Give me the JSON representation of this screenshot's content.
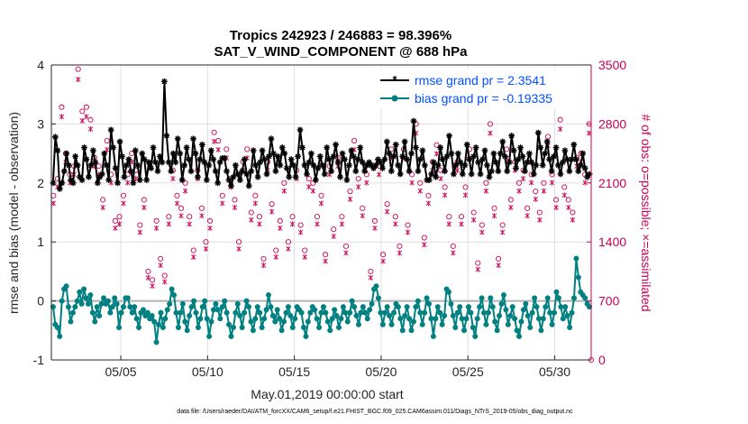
{
  "chart_data": {
    "type": "line",
    "title_line1": "Tropics 242923 / 246883 = 98.396%",
    "title_line2": "SAT_V_WIND_COMPONENT @ 688 hPa",
    "xlabel": "May.01,2019 00:00:00 start",
    "ylabel": "rmse and bias (model - observation)",
    "ylabel_right": "# of obs: o=possible; ×=assimilated",
    "footer": "data file: /Users/raeder/DAI/ATM_forcXX/CAM6_setup/f.e21.FHIST_BGC.f09_025.CAM6assim.011/Diags_NTrS_2019-05/obs_diag_output.nc",
    "xlim": [
      1,
      32.1
    ],
    "ylim": [
      -1,
      4
    ],
    "ylim_right": [
      0,
      3500
    ],
    "x_ticks": [
      5,
      10,
      15,
      20,
      25,
      30
    ],
    "x_tick_labels": [
      "05/05",
      "05/10",
      "05/15",
      "05/20",
      "05/25",
      "05/30"
    ],
    "y_ticks": [
      -1,
      0,
      1,
      2,
      3,
      4
    ],
    "y_tick_labels": [
      "-1",
      "0",
      "1",
      "2",
      "3",
      "4"
    ],
    "y_right_ticks": [
      0,
      700,
      1400,
      2100,
      2800,
      3500
    ],
    "y_right_tick_labels": [
      "0",
      "700",
      "1400",
      "2100",
      "2800",
      "3500"
    ],
    "zero_line": 0,
    "series": [
      {
        "name": "rmse grand pr = 2.3541",
        "color": "#000000",
        "marker": "asterisk",
        "values": [
          2.0,
          2.78,
          2.55,
          1.9,
          2.0,
          2.2,
          2.5,
          2.3,
          2.05,
          2.0,
          2.45,
          2.3,
          2.1,
          2.05,
          2.6,
          2.4,
          2.1,
          2.3,
          2.55,
          2.35,
          2.0,
          2.1,
          2.15,
          2.5,
          2.3,
          2.05,
          2.9,
          2.6,
          2.25,
          2.0,
          2.7,
          2.45,
          2.1,
          2.3,
          2.4,
          2.2,
          2.0,
          2.55,
          2.3,
          2.05,
          2.5,
          2.4,
          2.05,
          2.35,
          2.25,
          2.6,
          2.35,
          2.2,
          2.45,
          2.35,
          3.72,
          2.8,
          2.35,
          2.2,
          2.5,
          2.35,
          2.75,
          2.5,
          2.05,
          2.3,
          2.6,
          2.4,
          2.2,
          2.75,
          2.5,
          2.1,
          2.4,
          2.65,
          2.35,
          2.05,
          2.3,
          2.55,
          2.4,
          2.2,
          2.0,
          2.35,
          2.42,
          2.42,
          2.2,
          2.05,
          1.95,
          2.1,
          2.3,
          2.15,
          2.05,
          2.2,
          2.4,
          2.15,
          1.95,
          2.2,
          2.55,
          2.3,
          2.1,
          2.35,
          2.55,
          2.4,
          2.15,
          2.45,
          2.75,
          2.5,
          2.2,
          2.45,
          2.3,
          2.6,
          2.5,
          2.25,
          2.1,
          2.4,
          2.3,
          2.1,
          2.45,
          2.9,
          2.6,
          2.3,
          2.15,
          2.35,
          2.5,
          2.3,
          2.05,
          2.25,
          2.45,
          2.3,
          2.15,
          2.6,
          2.4,
          2.2,
          2.45,
          2.65,
          2.35,
          2.1,
          2.5,
          2.4,
          2.05,
          2.3,
          2.55,
          2.45,
          2.2,
          2.4,
          2.6,
          2.35,
          2.2,
          2.3,
          2.35,
          2.3,
          2.25,
          2.3,
          2.4,
          2.35,
          2.25,
          2.4,
          2.7,
          2.5,
          2.2,
          2.45,
          2.65,
          2.3,
          2.15,
          2.45,
          2.7,
          2.4,
          2.2,
          2.5,
          3.05,
          2.6,
          2.2,
          2.4,
          2.55,
          2.3,
          2.05,
          2.05,
          2.15,
          2.35,
          2.1,
          2.3,
          2.6,
          2.4,
          2.2,
          2.45,
          2.8,
          2.5,
          2.15,
          2.3,
          2.5,
          2.35,
          2.15,
          2.3,
          2.65,
          2.4,
          2.15,
          2.45,
          2.6,
          2.35,
          2.15,
          2.4,
          2.55,
          2.3,
          2.1,
          2.2,
          2.5,
          2.35,
          2.2,
          2.5,
          2.7,
          2.45,
          2.2,
          2.35,
          2.8,
          2.55,
          2.25,
          2.4,
          2.6,
          2.45,
          2.2,
          2.35,
          2.5,
          2.35,
          2.15,
          2.3,
          2.85,
          2.6,
          2.3,
          2.5,
          2.7,
          2.4,
          2.2,
          2.45,
          2.6,
          2.3,
          2.15,
          2.35,
          2.55,
          2.4,
          2.2,
          2.4,
          2.65,
          2.4,
          2.2,
          2.3,
          2.5,
          2.25,
          2.1,
          2.15
        ]
      },
      {
        "name": "bias grand pr = -0.19335",
        "color": "#008080",
        "marker": "circle",
        "values": [
          -0.1,
          -0.4,
          -0.45,
          -0.6,
          0.0,
          0.2,
          0.25,
          -0.1,
          -0.35,
          -0.2,
          -0.1,
          0.0,
          0.15,
          -0.05,
          0.2,
          0.05,
          -0.05,
          0.1,
          -0.2,
          -0.35,
          -0.1,
          -0.25,
          -0.05,
          0.05,
          -0.05,
          0.0,
          -0.2,
          -0.1,
          0.05,
          -0.05,
          -0.45,
          -0.2,
          -0.1,
          0.05,
          0.05,
          -0.1,
          -0.2,
          -0.1,
          -0.3,
          -0.45,
          -0.2,
          -0.15,
          -0.25,
          -0.2,
          -0.3,
          -0.25,
          -0.35,
          -0.7,
          -0.4,
          -0.2,
          -0.45,
          -0.3,
          -0.15,
          -0.05,
          0.2,
          0.1,
          -0.2,
          -0.45,
          -0.2,
          -0.05,
          -0.35,
          -0.5,
          -0.25,
          -0.1,
          0.0,
          -0.2,
          -0.45,
          -0.3,
          -0.1,
          0.0,
          -0.3,
          -0.6,
          -0.35,
          -0.15,
          -0.05,
          -0.15,
          -0.3,
          -0.1,
          0.0,
          -0.2,
          -0.4,
          -0.6,
          -0.45,
          -0.2,
          -0.05,
          -0.25,
          -0.45,
          -0.2,
          0.0,
          -0.1,
          -0.35,
          -0.5,
          -0.3,
          -0.1,
          -0.2,
          -0.45,
          -0.3,
          -0.15,
          0.1,
          -0.1,
          -0.25,
          -0.35,
          -0.15,
          -0.3,
          -0.5,
          -0.35,
          -0.2,
          -0.1,
          -0.25,
          -0.45,
          -0.3,
          -0.1,
          -0.15,
          -0.2,
          -0.45,
          -0.6,
          -0.35,
          -0.2,
          -0.1,
          -0.15,
          -0.3,
          -0.45,
          -0.2,
          -0.1,
          -0.2,
          -0.35,
          -0.5,
          -0.3,
          -0.15,
          -0.25,
          -0.45,
          -0.3,
          -0.1,
          -0.2,
          -0.35,
          -0.2,
          0.0,
          -0.1,
          -0.25,
          -0.4,
          -0.2,
          -0.1,
          -0.2,
          -0.3,
          -0.15,
          -0.05,
          0.2,
          0.25,
          0.05,
          -0.2,
          -0.4,
          -0.2,
          -0.1,
          -0.25,
          -0.4,
          -0.2,
          -0.05,
          -0.1,
          -0.3,
          -0.5,
          -0.25,
          -0.1,
          -0.3,
          -0.5,
          -0.35,
          -0.1,
          0.0,
          -0.2,
          -0.4,
          -0.2,
          0.05,
          -0.05,
          -0.3,
          -0.6,
          -0.3,
          -0.1,
          -0.2,
          -0.4,
          -0.25,
          0.2,
          0.15,
          -0.05,
          -0.25,
          -0.45,
          -0.2,
          -0.1,
          -0.3,
          -0.5,
          -0.3,
          -0.1,
          -0.2,
          -0.45,
          -0.6,
          -0.3,
          -0.1,
          0.05,
          -0.2,
          -0.4,
          -0.2,
          0.05,
          -0.1,
          -0.35,
          -0.5,
          -0.25,
          -0.05,
          0.1,
          -0.15,
          -0.4,
          -0.25,
          -0.1,
          -0.3,
          -0.5,
          -0.6,
          -0.35,
          -0.15,
          -0.05,
          -0.25,
          -0.45,
          -0.2,
          0.05,
          -0.1,
          -0.3,
          -0.5,
          -0.3,
          -0.1,
          0.05,
          -0.2,
          -0.4,
          -0.2,
          0.15,
          0.05,
          -0.1,
          -0.3,
          -0.1,
          -0.25,
          -0.45,
          -0.2,
          0.05,
          0.72,
          0.4,
          0.15,
          0.1,
          0.05,
          -0.05,
          -0.1
        ]
      }
    ],
    "obs_counts": {
      "name": "# of obs",
      "color": "#cc0055",
      "possible": [
        1950,
        2150,
        3000,
        2450,
        2200,
        2300,
        3450,
        2950,
        3000,
        2850,
        2400,
        2300,
        1900,
        2600,
        2200,
        1650,
        1700,
        1950,
        2200,
        2450,
        2250,
        1600,
        1900,
        1050,
        950,
        1650,
        1200,
        1000,
        1700,
        2250,
        1950,
        1800,
        2100,
        1700,
        1300,
        2250,
        1800,
        1400,
        1650,
        2700,
        2600,
        1950,
        2500,
        2150,
        1900,
        1400,
        2350,
        2500,
        1750,
        1950,
        1700,
        1200,
        2350,
        1850,
        1300,
        1650,
        2100,
        1400,
        1700,
        2250,
        1600,
        1300,
        2150,
        2100,
        1700,
        1950,
        1250,
        2300,
        1550,
        2400,
        1700,
        1350,
        2000,
        2600,
        2150,
        1800,
        2200,
        1050,
        1650,
        2300,
        1250,
        1850,
        2500,
        1700,
        1350,
        2500,
        1600,
        2200,
        2800,
        2100,
        1450,
        1950,
        2350,
        2550,
        2250,
        2050,
        1700,
        1350,
        2350,
        1700,
        2050,
        2500,
        1750,
        1150,
        1600,
        2100,
        2800,
        1800,
        1200,
        1600,
        2500,
        1900,
        2350,
        2100,
        2250,
        1800,
        2200,
        2000,
        1750,
        2100,
        2650,
        2200,
        1900,
        2850,
        2050,
        1900,
        1750,
        2400,
        2450,
        2200,
        2800
      ]
    }
  }
}
